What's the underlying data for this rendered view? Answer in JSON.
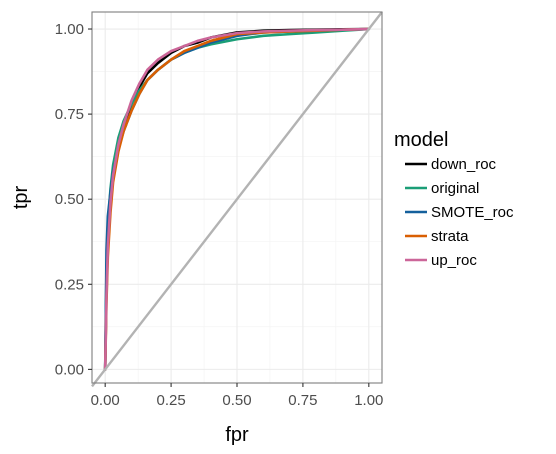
{
  "chart_data": {
    "type": "line",
    "title": "",
    "xlabel": "fpr",
    "ylabel": "tpr",
    "xlim": [
      -0.05,
      1.05
    ],
    "ylim": [
      -0.04,
      1.05
    ],
    "xticks": [
      0.0,
      0.25,
      0.5,
      0.75,
      1.0
    ],
    "xtick_labels": [
      "0.00",
      "0.25",
      "0.50",
      "0.75",
      "1.00"
    ],
    "yticks": [
      0.0,
      0.25,
      0.5,
      0.75,
      1.0
    ],
    "ytick_labels": [
      "0.00",
      "0.25",
      "0.50",
      "0.75",
      "1.00"
    ],
    "grid": true,
    "diagonal_reference": {
      "x": [
        -0.05,
        1.05
      ],
      "y": [
        -0.05,
        1.05
      ],
      "color": "#b3b3b3"
    },
    "legend": {
      "title": "model",
      "position": "right"
    },
    "series": [
      {
        "name": "down_roc",
        "color": "#000000",
        "x": [
          0.0,
          0.005,
          0.01,
          0.02,
          0.03,
          0.05,
          0.07,
          0.1,
          0.13,
          0.16,
          0.2,
          0.25,
          0.3,
          0.35,
          0.4,
          0.5,
          0.6,
          0.7,
          0.8,
          0.9,
          1.0
        ],
        "y": [
          0.0,
          0.25,
          0.38,
          0.5,
          0.58,
          0.66,
          0.72,
          0.78,
          0.83,
          0.87,
          0.9,
          0.93,
          0.95,
          0.96,
          0.975,
          0.99,
          0.995,
          0.997,
          0.998,
          0.999,
          1.0
        ]
      },
      {
        "name": "original",
        "color": "#1b9e77",
        "x": [
          0.0,
          0.005,
          0.01,
          0.02,
          0.03,
          0.05,
          0.07,
          0.1,
          0.13,
          0.16,
          0.2,
          0.25,
          0.3,
          0.35,
          0.4,
          0.5,
          0.6,
          0.7,
          0.8,
          0.9,
          1.0
        ],
        "y": [
          0.0,
          0.3,
          0.42,
          0.53,
          0.6,
          0.68,
          0.73,
          0.78,
          0.82,
          0.85,
          0.88,
          0.91,
          0.93,
          0.945,
          0.955,
          0.97,
          0.98,
          0.985,
          0.99,
          0.995,
          1.0
        ]
      },
      {
        "name": "SMOTE_roc",
        "color": "#14609c",
        "x": [
          0.0,
          0.005,
          0.01,
          0.02,
          0.03,
          0.05,
          0.07,
          0.1,
          0.13,
          0.16,
          0.2,
          0.25,
          0.3,
          0.35,
          0.4,
          0.5,
          0.6,
          0.7,
          0.8,
          0.9,
          1.0
        ],
        "y": [
          0.0,
          0.35,
          0.45,
          0.52,
          0.58,
          0.65,
          0.7,
          0.76,
          0.81,
          0.85,
          0.88,
          0.91,
          0.93,
          0.945,
          0.96,
          0.98,
          0.99,
          0.993,
          0.995,
          0.998,
          1.0
        ]
      },
      {
        "name": "strata",
        "color": "#d95f02",
        "x": [
          0.0,
          0.005,
          0.01,
          0.02,
          0.03,
          0.05,
          0.07,
          0.1,
          0.13,
          0.16,
          0.2,
          0.25,
          0.3,
          0.35,
          0.4,
          0.5,
          0.6,
          0.7,
          0.8,
          0.9,
          1.0
        ],
        "y": [
          0.0,
          0.2,
          0.33,
          0.46,
          0.55,
          0.64,
          0.7,
          0.76,
          0.81,
          0.85,
          0.88,
          0.91,
          0.935,
          0.95,
          0.965,
          0.985,
          0.99,
          0.993,
          0.995,
          0.998,
          1.0
        ]
      },
      {
        "name": "up_roc",
        "color": "#cc6699",
        "x": [
          0.0,
          0.005,
          0.01,
          0.02,
          0.03,
          0.05,
          0.07,
          0.1,
          0.13,
          0.16,
          0.2,
          0.25,
          0.3,
          0.35,
          0.4,
          0.5,
          0.6,
          0.7,
          0.8,
          0.9,
          1.0
        ],
        "y": [
          0.0,
          0.22,
          0.36,
          0.49,
          0.57,
          0.66,
          0.72,
          0.79,
          0.84,
          0.88,
          0.91,
          0.935,
          0.95,
          0.965,
          0.975,
          0.988,
          0.993,
          0.995,
          0.997,
          0.998,
          1.0
        ]
      }
    ]
  }
}
